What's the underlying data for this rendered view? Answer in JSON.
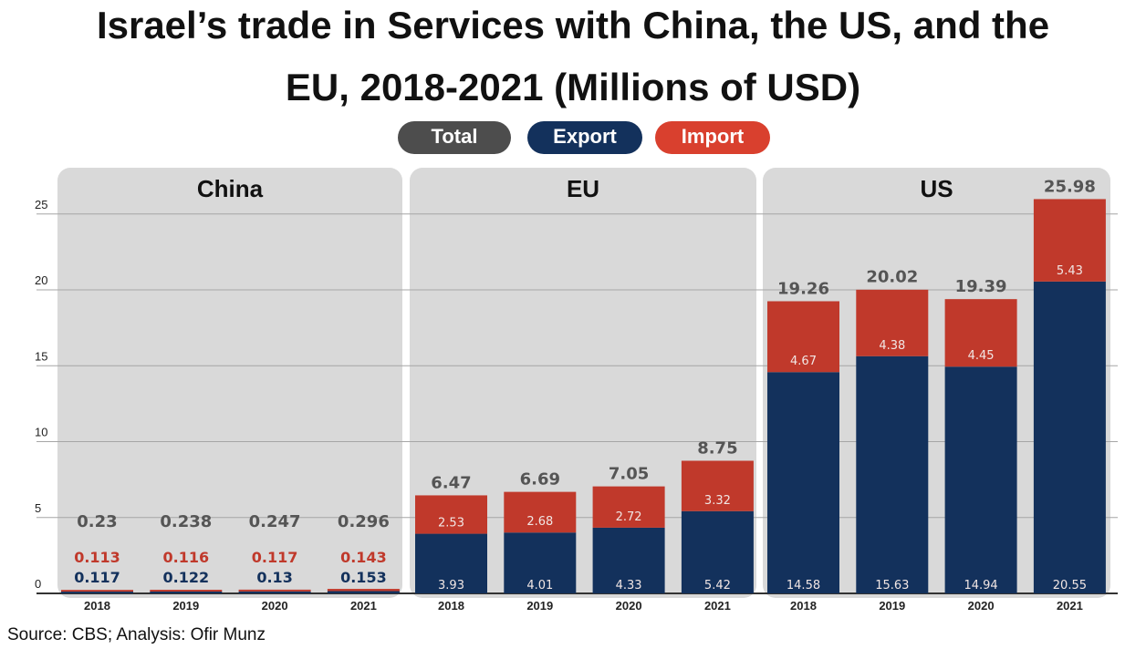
{
  "title_line1": "Israel’s trade in Services with China, the US, and the",
  "title_line2": "EU, 2018-2021 (Millions of USD)",
  "legend": [
    {
      "label": "Total",
      "color": "#4d4d4d"
    },
    {
      "label": "Export",
      "color": "#13315c"
    },
    {
      "label": "Import",
      "color": "#d9402e"
    }
  ],
  "colors": {
    "export": "#13315c",
    "import": "#c0392b",
    "panel": "#d9d9d9",
    "grid": "#a6a6a6"
  },
  "source": "Source: CBS; Analysis: Ofir Munz",
  "chart_data": {
    "type": "bar",
    "stacked": true,
    "title": "Israel’s trade in Services with China, the US, and the EU, 2018-2021 (Millions of USD)",
    "ylim": [
      0,
      26
    ],
    "yticks": [
      0,
      5,
      10,
      15,
      20,
      25
    ],
    "grid": true,
    "legend_position": "top-center",
    "series_names": [
      "Total",
      "Export",
      "Import"
    ],
    "panels": [
      {
        "label": "China",
        "categories": [
          "2018",
          "2019",
          "2020",
          "2021"
        ],
        "export": [
          0.117,
          0.122,
          0.13,
          0.153
        ],
        "import": [
          0.113,
          0.116,
          0.117,
          0.143
        ],
        "total": [
          0.23,
          0.238,
          0.247,
          0.296
        ],
        "export_labels": [
          "0.117",
          "0.122",
          "0.13",
          "0.153"
        ],
        "import_labels": [
          "0.113",
          "0.116",
          "0.117",
          "0.143"
        ],
        "total_labels": [
          "0.23",
          "0.238",
          "0.247",
          "0.296"
        ]
      },
      {
        "label": "EU",
        "categories": [
          "2018",
          "2019",
          "2020",
          "2021"
        ],
        "export": [
          3.93,
          4.01,
          4.33,
          5.42
        ],
        "import": [
          2.53,
          2.68,
          2.72,
          3.32
        ],
        "total": [
          6.47,
          6.69,
          7.05,
          8.75
        ],
        "export_labels": [
          "3.93",
          "4.01",
          "4.33",
          "5.42"
        ],
        "import_labels": [
          "2.53",
          "2.68",
          "2.72",
          "3.32"
        ],
        "total_labels": [
          "6.47",
          "6.69",
          "7.05",
          "8.75"
        ]
      },
      {
        "label": "US",
        "categories": [
          "2018",
          "2019",
          "2020",
          "2021"
        ],
        "export": [
          14.58,
          15.63,
          14.94,
          20.55
        ],
        "import": [
          4.67,
          4.38,
          4.45,
          5.43
        ],
        "total": [
          19.26,
          20.02,
          19.39,
          25.98
        ],
        "export_labels": [
          "14.58",
          "15.63",
          "14.94",
          "20.55"
        ],
        "import_labels": [
          "4.67",
          "4.38",
          "4.45",
          "5.43"
        ],
        "total_labels": [
          "19.26",
          "20.02",
          "19.39",
          "25.98"
        ]
      }
    ]
  }
}
